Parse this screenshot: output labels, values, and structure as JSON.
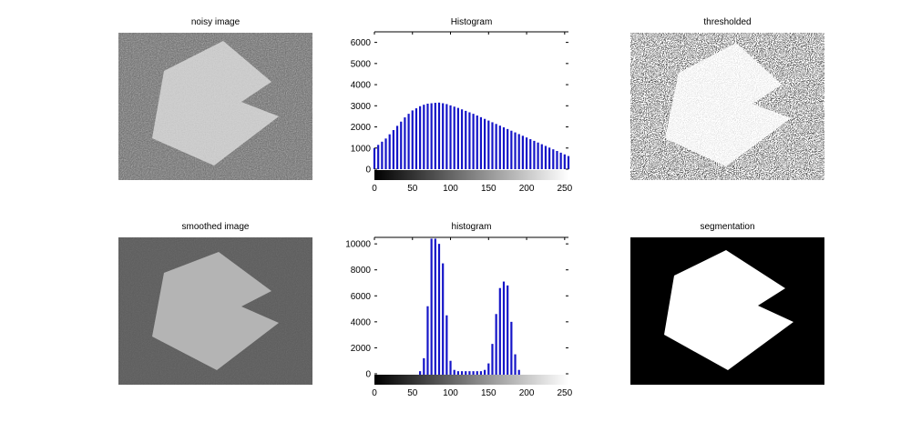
{
  "figure": {
    "titles": {
      "noisy": "noisy image",
      "hist1": "Histogram",
      "thresholded": "thresholded",
      "smoothed": "smoothed image",
      "hist2": "histogram",
      "segmentation": "segmentation"
    }
  },
  "colors": {
    "bar": "#1515c8",
    "background": "#ffffff",
    "shape_smoothed": "#b4b4b4",
    "bg_smoothed": "#5a5a5a"
  },
  "chart_data": [
    {
      "type": "bar",
      "title": "Histogram",
      "xlabel": "",
      "ylabel": "",
      "xlim": [
        0,
        255
      ],
      "ylim": [
        0,
        6500
      ],
      "xticks": [
        0,
        50,
        100,
        150,
        200,
        250
      ],
      "yticks": [
        0,
        1000,
        2000,
        3000,
        4000,
        5000,
        6000
      ],
      "colorbar": "grayscale 0-255 under x axis",
      "series": [
        {
          "x": [
            0,
            5,
            10,
            15,
            20,
            25,
            30,
            35,
            40,
            45,
            50,
            55,
            60,
            65,
            70,
            75,
            80,
            85,
            90,
            95,
            100,
            105,
            110,
            115,
            120,
            125,
            130,
            135,
            140,
            145,
            150,
            155,
            160,
            165,
            170,
            175,
            180,
            185,
            190,
            195,
            200,
            205,
            210,
            215,
            220,
            225,
            230,
            235,
            240,
            245,
            250,
            255
          ],
          "values": [
            1000,
            1150,
            1300,
            1450,
            1650,
            1850,
            2050,
            2250,
            2450,
            2620,
            2780,
            2880,
            2980,
            3050,
            3100,
            3120,
            3140,
            3150,
            3120,
            3080,
            3020,
            2960,
            2900,
            2830,
            2760,
            2690,
            2620,
            2540,
            2460,
            2380,
            2300,
            2220,
            2140,
            2060,
            1980,
            1900,
            1820,
            1740,
            1660,
            1580,
            1500,
            1420,
            1340,
            1260,
            1180,
            1100,
            1020,
            940,
            860,
            780,
            700,
            620
          ]
        }
      ]
    },
    {
      "type": "bar",
      "title": "histogram",
      "xlabel": "",
      "ylabel": "",
      "xlim": [
        0,
        255
      ],
      "ylim": [
        0,
        10500
      ],
      "xticks": [
        0,
        50,
        100,
        150,
        200,
        250
      ],
      "yticks": [
        0,
        2000,
        4000,
        6000,
        8000,
        10000
      ],
      "colorbar": "grayscale 0-255 under x axis",
      "series": [
        {
          "x": [
            0,
            5,
            10,
            15,
            20,
            25,
            30,
            35,
            40,
            45,
            50,
            55,
            60,
            65,
            70,
            75,
            80,
            85,
            90,
            95,
            100,
            105,
            110,
            115,
            120,
            125,
            130,
            135,
            140,
            145,
            150,
            155,
            160,
            165,
            170,
            175,
            180,
            185,
            190,
            195,
            200,
            205,
            210,
            215,
            220,
            225,
            230,
            235,
            240,
            245,
            250,
            255
          ],
          "values": [
            0,
            0,
            0,
            0,
            0,
            0,
            0,
            0,
            0,
            0,
            0,
            0,
            200,
            1200,
            5200,
            10400,
            10400,
            10000,
            8500,
            4500,
            1000,
            300,
            200,
            200,
            200,
            200,
            200,
            200,
            200,
            300,
            800,
            2300,
            4600,
            6600,
            7100,
            6800,
            4000,
            1500,
            300,
            0,
            0,
            0,
            0,
            0,
            0,
            0,
            0,
            0,
            0,
            0,
            0,
            0
          ]
        }
      ]
    }
  ]
}
